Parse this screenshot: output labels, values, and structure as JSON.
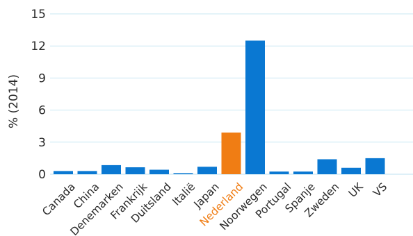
{
  "chart_data": {
    "type": "bar",
    "ylabel": "% (2014)",
    "xlabel": "",
    "title": "",
    "ylim": [
      0,
      15
    ],
    "yticks": [
      0,
      3,
      6,
      9,
      12,
      15
    ],
    "grid": true,
    "categories": [
      "Canada",
      "China",
      "Denemarken",
      "Frankrijk",
      "Duitsland",
      "Italië",
      "Japan",
      "Nederland",
      "Noorwegen",
      "Portugal",
      "Spanje",
      "Zweden",
      "UK",
      "VS"
    ],
    "values": [
      0.3,
      0.3,
      0.85,
      0.65,
      0.42,
      0.1,
      0.7,
      3.9,
      12.5,
      0.25,
      0.25,
      1.4,
      0.6,
      1.5
    ],
    "highlight": "Nederland",
    "colors": {
      "bar": "#0a78d2",
      "highlight": "#f07d14",
      "grid": "#c9e7f3"
    }
  }
}
